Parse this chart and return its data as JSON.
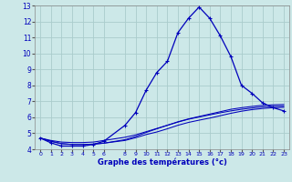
{
  "xlabel": "Graphe des températures (°c)",
  "background_color": "#cce8e8",
  "grid_color": "#aacccc",
  "line_color": "#0000bb",
  "xlim": [
    -0.5,
    23.5
  ],
  "ylim": [
    4,
    13
  ],
  "xticks": [
    0,
    1,
    2,
    3,
    4,
    5,
    6,
    8,
    9,
    10,
    11,
    12,
    13,
    14,
    15,
    16,
    17,
    18,
    19,
    20,
    21,
    22,
    23
  ],
  "yticks": [
    4,
    5,
    6,
    7,
    8,
    9,
    10,
    11,
    12,
    13
  ],
  "hours": [
    0,
    1,
    2,
    3,
    4,
    5,
    6,
    8,
    9,
    10,
    11,
    12,
    13,
    14,
    15,
    16,
    17,
    18,
    19,
    20,
    21,
    22,
    23
  ],
  "temp_main": [
    4.7,
    4.4,
    4.2,
    4.2,
    4.2,
    4.3,
    4.5,
    5.5,
    6.3,
    7.7,
    8.8,
    9.5,
    11.3,
    12.2,
    12.9,
    12.2,
    11.1,
    9.8,
    8.0,
    7.5,
    6.9,
    6.6,
    6.4
  ],
  "temp_line2": [
    4.7,
    4.55,
    4.45,
    4.42,
    4.42,
    4.45,
    4.55,
    4.75,
    4.9,
    5.1,
    5.3,
    5.5,
    5.7,
    5.88,
    6.02,
    6.15,
    6.28,
    6.4,
    6.5,
    6.58,
    6.65,
    6.68,
    6.7
  ],
  "temp_line3": [
    4.7,
    4.5,
    4.35,
    4.3,
    4.3,
    4.32,
    4.38,
    4.55,
    4.72,
    4.92,
    5.08,
    5.28,
    5.5,
    5.68,
    5.82,
    5.95,
    6.1,
    6.25,
    6.38,
    6.48,
    6.55,
    6.6,
    6.62
  ],
  "temp_line4": [
    4.7,
    4.5,
    4.35,
    4.3,
    4.3,
    4.32,
    4.38,
    4.6,
    4.8,
    5.05,
    5.28,
    5.5,
    5.72,
    5.9,
    6.05,
    6.2,
    6.35,
    6.5,
    6.6,
    6.68,
    6.75,
    6.78,
    6.8
  ]
}
